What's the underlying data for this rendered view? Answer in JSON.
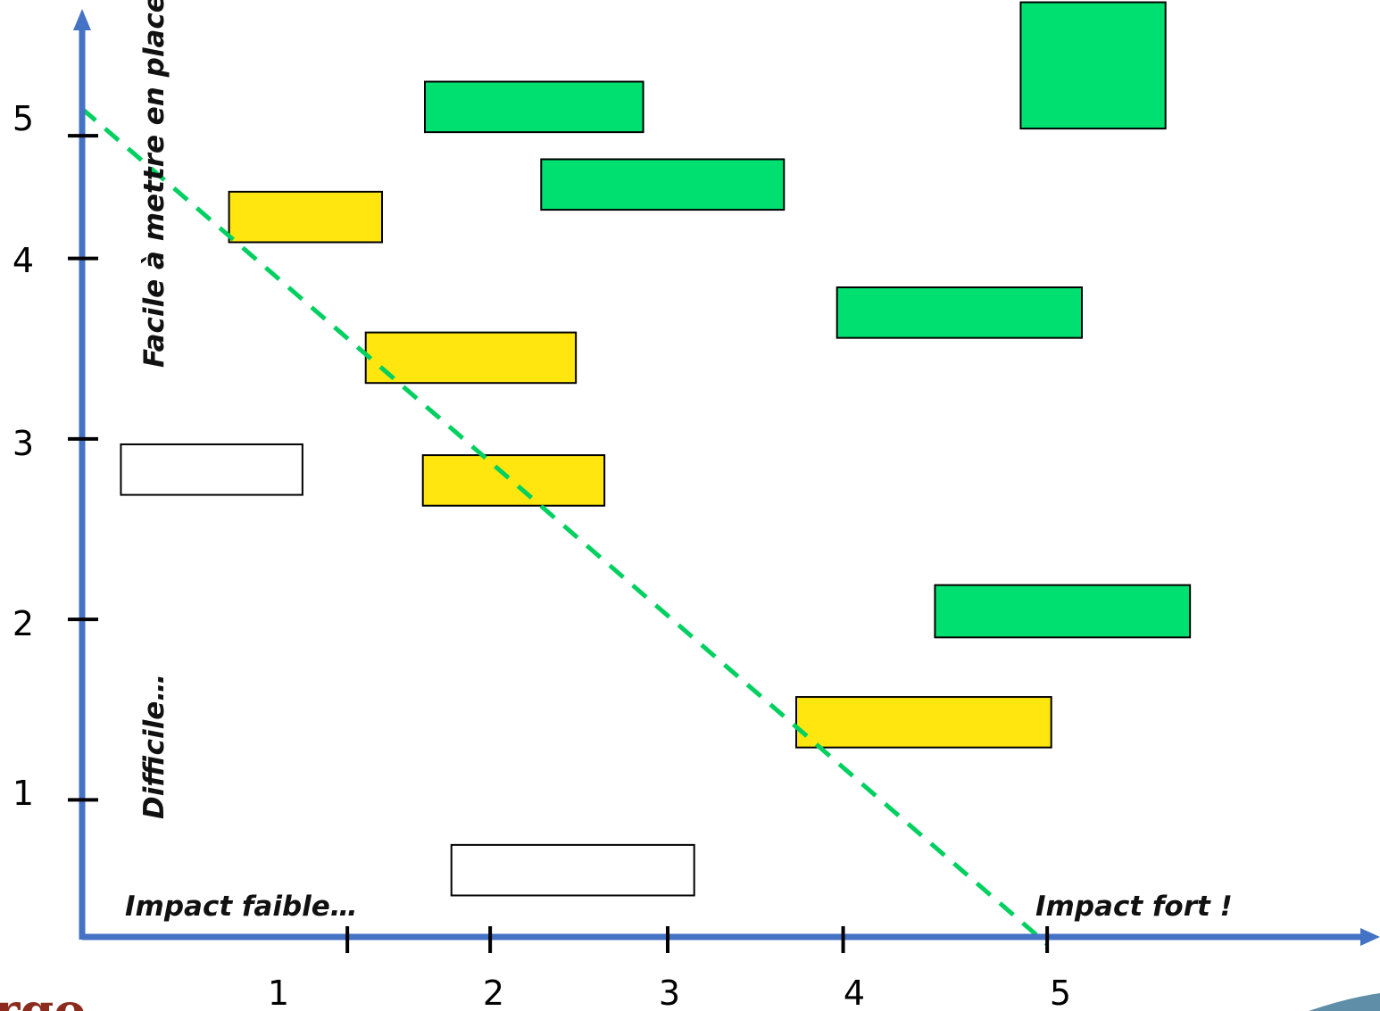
{
  "chart_data": {
    "type": "scatter",
    "x_ticks": [
      {
        "value": 1,
        "label": "1",
        "mark_at": 1.3
      },
      {
        "value": 2,
        "label": "2",
        "mark_at": 2.0
      },
      {
        "value": 3,
        "label": "3",
        "mark_at": 2.87
      },
      {
        "value": 4,
        "label": "4",
        "mark_at": 3.73
      },
      {
        "value": 5,
        "label": "5",
        "mark_at": 4.73
      }
    ],
    "y_ticks": [
      {
        "value": 1,
        "label": "1",
        "mark_at": 0.76
      },
      {
        "value": 2,
        "label": "2",
        "mark_at": 1.76
      },
      {
        "value": 3,
        "label": "3",
        "mark_at": 2.76
      },
      {
        "value": 4,
        "label": "4",
        "mark_at": 3.76
      },
      {
        "value": 5,
        "label": "5",
        "mark_at": 4.44
      }
    ],
    "xlim": [
      0,
      6.3
    ],
    "ylim": [
      0,
      4.97
    ],
    "annotations": {
      "y_top": "Facile à mettre en place",
      "y_bottom": "Difficile…",
      "x_left": "Impact faible…",
      "x_right": "Impact fort !"
    },
    "boxes": [
      {
        "x0": 1.68,
        "x1": 2.75,
        "y0": 4.46,
        "y1": 4.74,
        "color": "green"
      },
      {
        "x0": 2.25,
        "x1": 3.44,
        "y0": 4.03,
        "y1": 4.31,
        "color": "green"
      },
      {
        "x0": 4.6,
        "x1": 5.31,
        "y0": 4.48,
        "y1": 5.18,
        "color": "green"
      },
      {
        "x0": 3.7,
        "x1": 4.9,
        "y0": 3.32,
        "y1": 3.6,
        "color": "green"
      },
      {
        "x0": 4.18,
        "x1": 5.43,
        "y0": 1.66,
        "y1": 1.95,
        "color": "green"
      },
      {
        "x0": 0.72,
        "x1": 1.47,
        "y0": 3.85,
        "y1": 4.13,
        "color": "yellow"
      },
      {
        "x0": 1.39,
        "x1": 2.42,
        "y0": 3.07,
        "y1": 3.35,
        "color": "yellow"
      },
      {
        "x0": 1.67,
        "x1": 2.56,
        "y0": 2.39,
        "y1": 2.67,
        "color": "yellow"
      },
      {
        "x0": 3.5,
        "x1": 4.75,
        "y0": 1.05,
        "y1": 1.33,
        "color": "yellow"
      },
      {
        "x0": 0.19,
        "x1": 1.08,
        "y0": 2.45,
        "y1": 2.73,
        "color": "white"
      },
      {
        "x0": 1.81,
        "x1": 3.0,
        "y0": 0.23,
        "y1": 0.51,
        "color": "white"
      }
    ],
    "trend_line": {
      "x": [
        0,
        4.73
      ],
      "y": [
        4.59,
        -0.04
      ],
      "color": "#00d060",
      "style": "dashed"
    },
    "colors": {
      "axis": "#4472c4",
      "green": "#00e070",
      "yellow": "#ffe60f",
      "white": "#ffffff"
    }
  },
  "logo": {
    "text": "rgo"
  }
}
